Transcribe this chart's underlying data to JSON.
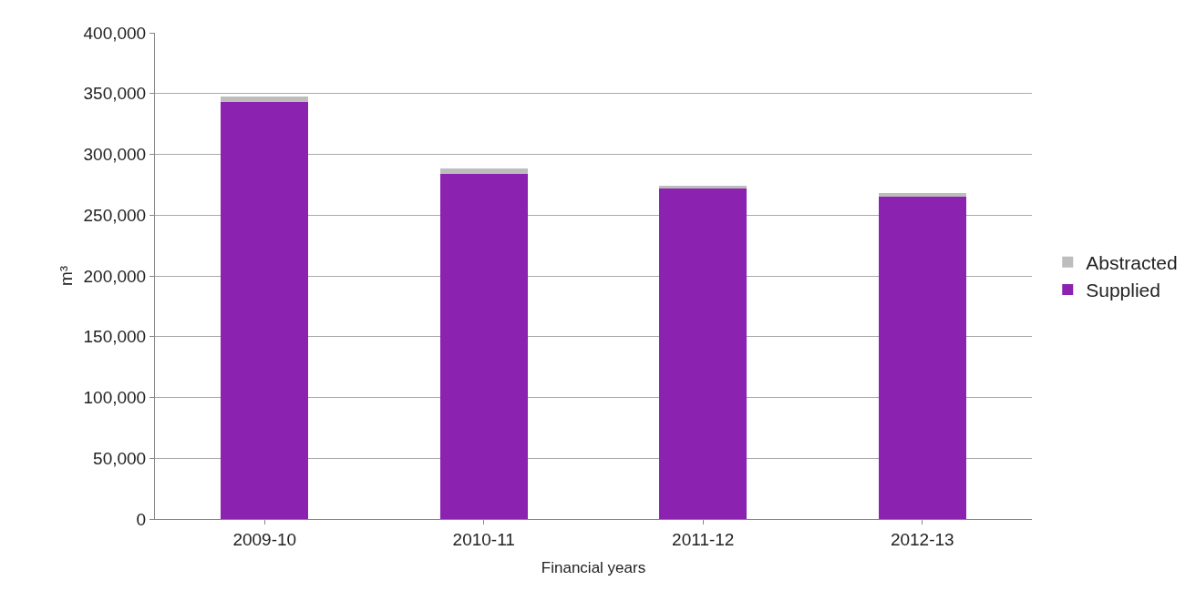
{
  "chart_data": {
    "type": "bar",
    "stacked": true,
    "xlabel": "Financial years",
    "ylabel": "m³",
    "categories": [
      "2009-10",
      "2010-11",
      "2011-12",
      "2012-13"
    ],
    "series": [
      {
        "name": "Supplied",
        "color": "#8b22b0",
        "values": [
          343000,
          284000,
          272000,
          265500
        ]
      },
      {
        "name": "Abstracted",
        "color": "#bdbdbd",
        "values": [
          4500,
          4500,
          2000,
          3000
        ]
      }
    ],
    "ylim": [
      0,
      400000
    ],
    "yticks": [
      {
        "value": 0,
        "label": "0"
      },
      {
        "value": 50000,
        "label": "50,000"
      },
      {
        "value": 100000,
        "label": "100,000"
      },
      {
        "value": 150000,
        "label": "150,000"
      },
      {
        "value": 200000,
        "label": "200,000"
      },
      {
        "value": 250000,
        "label": "250,000"
      },
      {
        "value": 300000,
        "label": "300,000"
      },
      {
        "value": 350000,
        "label": "350,000"
      },
      {
        "value": 400000,
        "label": "400,000"
      }
    ],
    "grid": "y",
    "legend": "right"
  }
}
